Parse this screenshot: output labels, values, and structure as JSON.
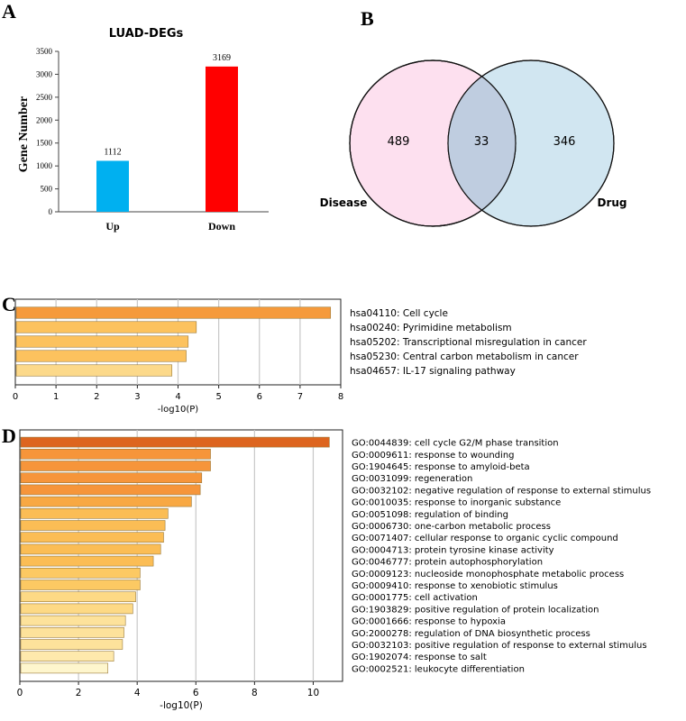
{
  "chart_data": [
    {
      "panel": "A",
      "type": "bar",
      "title": "LUAD-DEGs",
      "xlabel": "",
      "ylabel": "Gene Number",
      "categories": [
        "Up",
        "Down"
      ],
      "values": [
        1112,
        3169
      ],
      "colors": [
        "#00b0f0",
        "#ff0000"
      ],
      "ylim": [
        0,
        3500
      ],
      "yticks": [
        0,
        500,
        1000,
        1500,
        2000,
        2500,
        3000,
        3500
      ]
    },
    {
      "panel": "B",
      "type": "venn",
      "sets": [
        {
          "name": "Disease",
          "only": 489,
          "color": "#fde0ef"
        },
        {
          "name": "Drug",
          "only": 346,
          "color": "#c9e2ee"
        }
      ],
      "intersection": 33
    },
    {
      "panel": "C",
      "type": "bar",
      "orientation": "horizontal",
      "xlabel": "-log10(P)",
      "xlim": [
        0,
        8
      ],
      "xticks": [
        0,
        1,
        2,
        3,
        4,
        5,
        6,
        7,
        8
      ],
      "categories": [
        "hsa04110: Cell cycle",
        "hsa00240: Pyrimidine metabolism",
        "hsa05202: Transcriptional misregulation in cancer",
        "hsa05230: Central carbon metabolism in cancer",
        "hsa04657: IL-17 signaling pathway"
      ],
      "values": [
        7.75,
        4.45,
        4.25,
        4.2,
        3.85
      ],
      "colors": [
        "#f59a3b",
        "#fcc25e",
        "#fcc25e",
        "#fcc25e",
        "#fcd98a"
      ]
    },
    {
      "panel": "D",
      "type": "bar",
      "orientation": "horizontal",
      "xlabel": "-log10(P)",
      "xlim": [
        0,
        11
      ],
      "xticks": [
        0,
        2,
        4,
        6,
        8,
        10
      ],
      "categories": [
        "GO:0044839: cell cycle G2/M phase transition",
        "GO:0009611: response to wounding",
        "GO:1904645: response to amyloid-beta",
        "GO:0031099: regeneration",
        "GO:0032102: negative regulation of response to external stimulus",
        "GO:0010035: response to inorganic substance",
        "GO:0051098: regulation of binding",
        "GO:0006730: one-carbon metabolic process",
        "GO:0071407: cellular response to organic cyclic compound",
        "GO:0004713: protein tyrosine kinase activity",
        "GO:0046777: protein autophosphorylation",
        "GO:0009123: nucleoside monophosphate metabolic process",
        "GO:0009410: response to xenobiotic stimulus",
        "GO:0001775: cell activation",
        "GO:1903829: positive regulation of protein localization",
        "GO:0001666: response to hypoxia",
        "GO:2000278: regulation of DNA biosynthetic process",
        "GO:0032103: positive regulation of response to external stimulus",
        "GO:1902074: response to salt",
        "GO:0002521: leukocyte differentiation"
      ],
      "values": [
        10.55,
        6.5,
        6.5,
        6.2,
        6.15,
        5.85,
        5.05,
        4.95,
        4.9,
        4.8,
        4.55,
        4.1,
        4.1,
        3.95,
        3.85,
        3.6,
        3.55,
        3.5,
        3.2,
        3.0
      ],
      "colors": [
        "#dd651f",
        "#f6953a",
        "#f6953a",
        "#f6953a",
        "#f6953a",
        "#f8a843",
        "#fbbd55",
        "#fbbd55",
        "#fbbd55",
        "#fbbd55",
        "#fbbd55",
        "#fcc963",
        "#fcc963",
        "#fdd985",
        "#fdd985",
        "#fde29b",
        "#fde29b",
        "#fde29b",
        "#fee9ac",
        "#fef6cd"
      ]
    }
  ],
  "panel_labels": [
    "A",
    "B",
    "C",
    "D"
  ]
}
